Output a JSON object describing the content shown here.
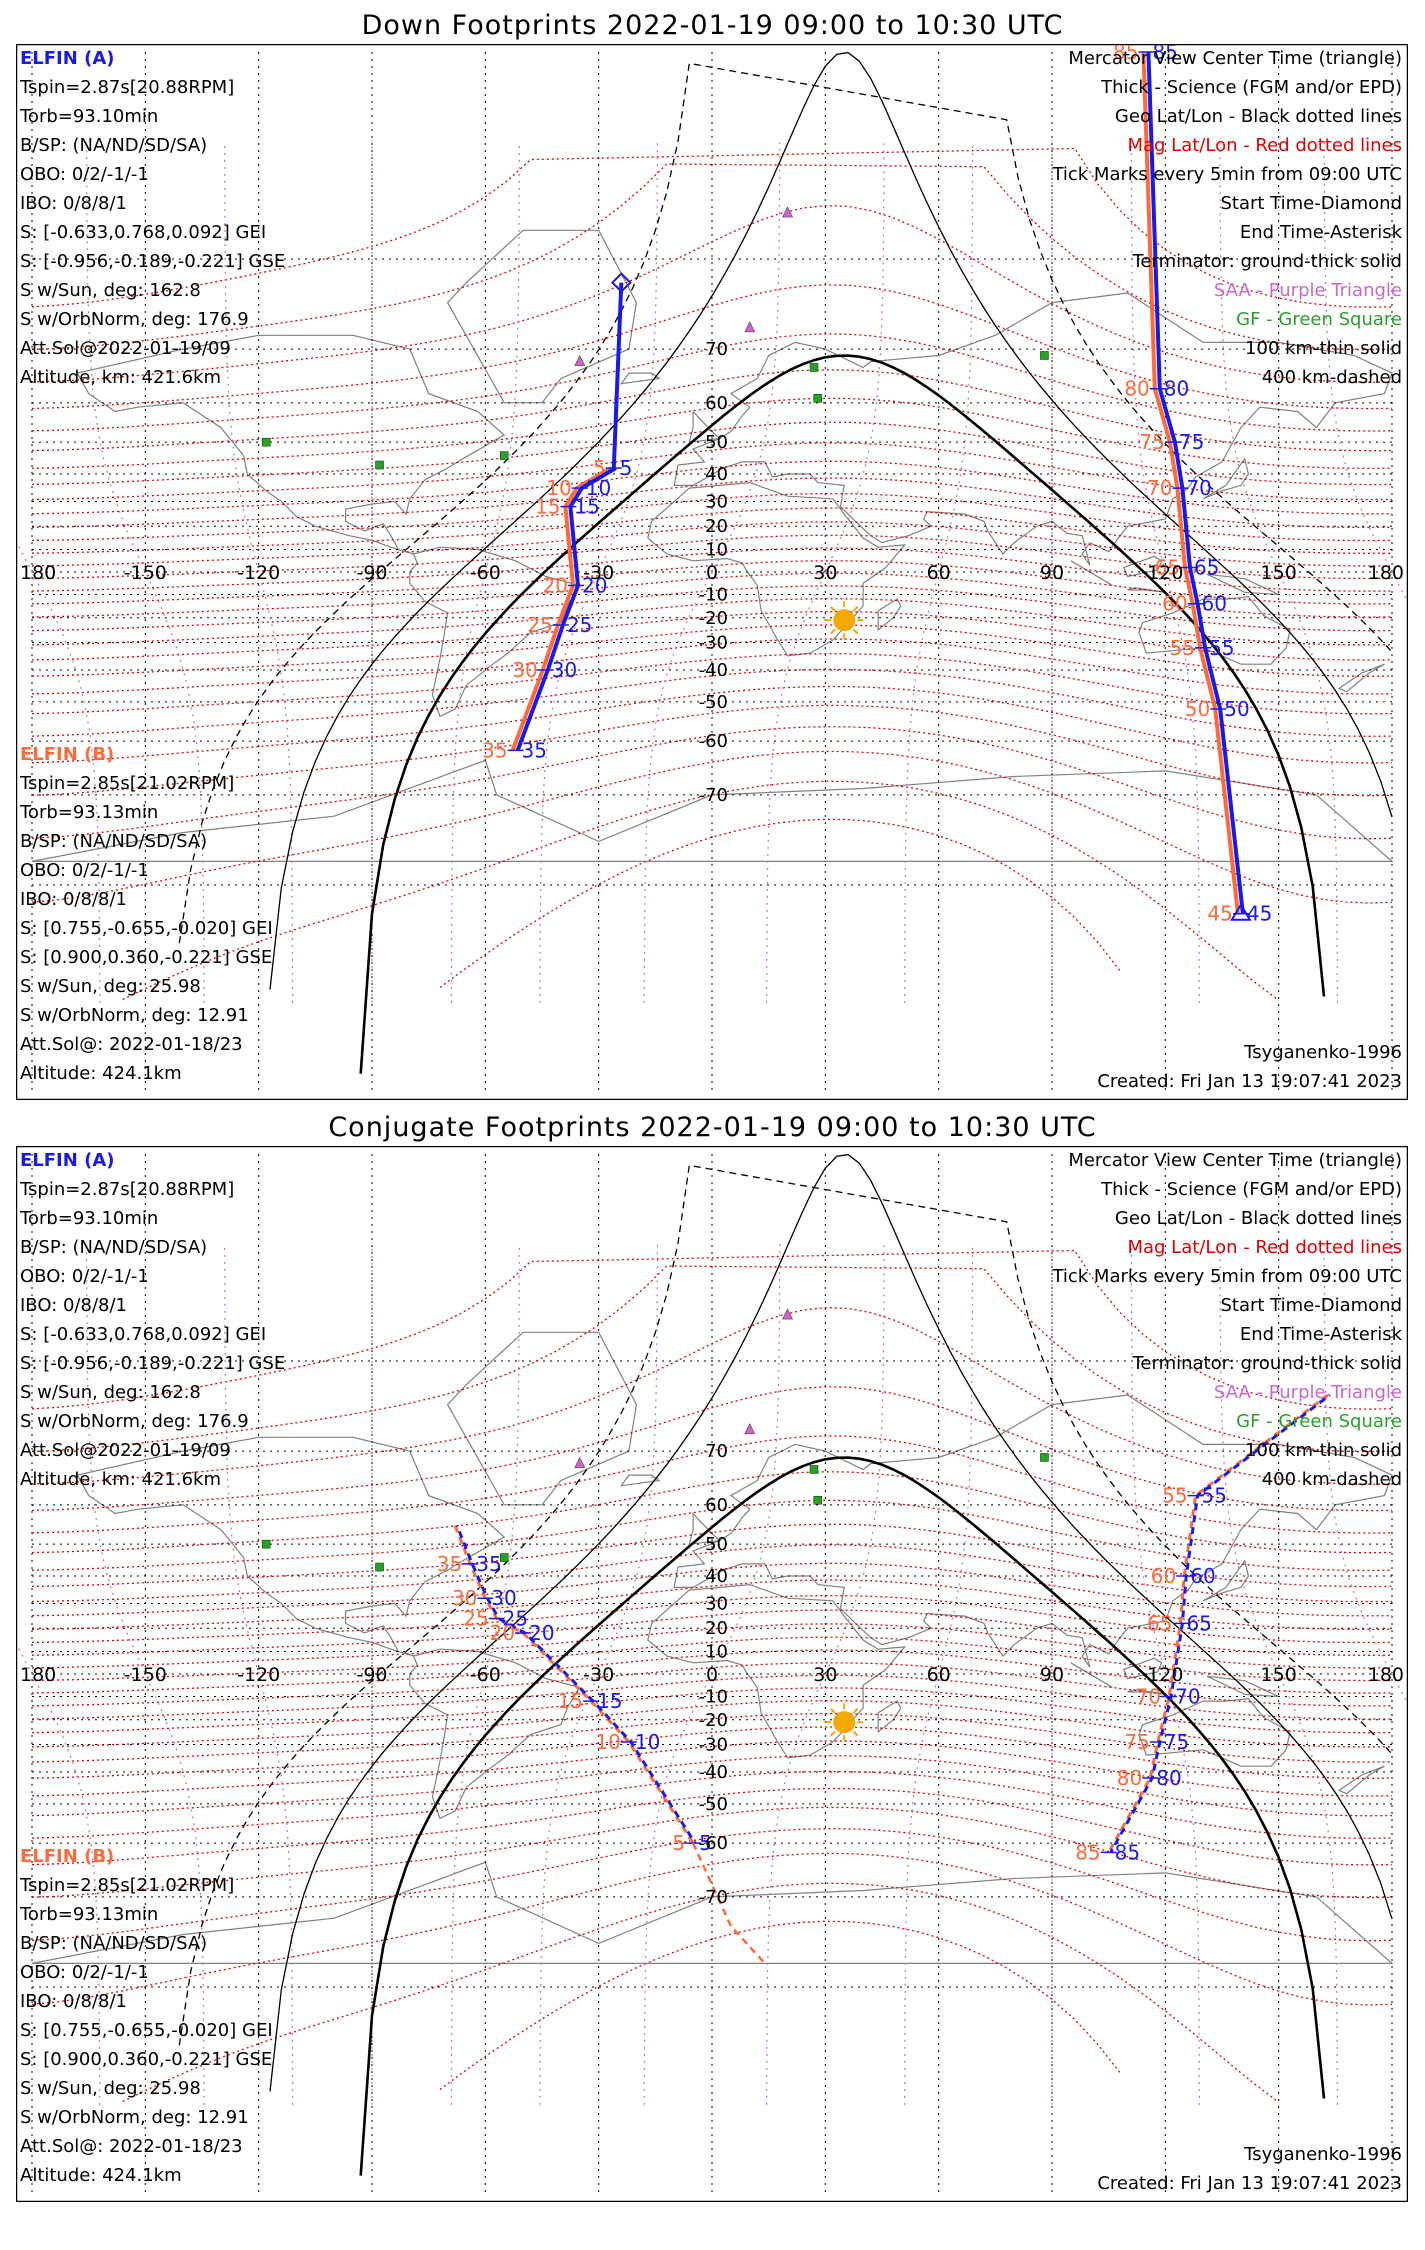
{
  "panels": [
    {
      "title": "Down Footprints 2022-01-19 09:00 to 10:30 UTC",
      "sat_a": {
        "name": "ELFIN (A)",
        "lines": [
          "Tspin=2.87s[20.88RPM]",
          "Torb=93.10min",
          "B/SP: (NA/ND/SD/SA)",
          "OBO: 0/2/-1/-1",
          "IBO: 0/8/8/1",
          "S: [-0.633,0.768,0.092] GEI",
          "S: [-0.956,-0.189,-0.221] GSE",
          "S w/Sun, deg: 162.8",
          "S w/OrbNorm, deg: 176.9",
          "Att.Sol@2022-01-19/09",
          "Altitude, km: 421.6km"
        ]
      },
      "sat_b": {
        "name": "ELFIN (B)",
        "lines": [
          "Tspin=2.85s[21.02RPM]",
          "Torb=93.13min",
          "B/SP: (NA/ND/SD/SA)",
          "OBO: 0/2/-1/-1",
          "IBO: 0/8/8/1",
          "S: [0.755,-0.655,-0.020] GEI",
          "S: [0.900,0.360,-0.221] GSE",
          "S w/Sun, deg: 25.98",
          "S w/OrbNorm, deg: 12.91",
          "Att.Sol@: 2022-01-18/23",
          "Altitude: 424.1km"
        ]
      },
      "legend": [
        "Mercator View Center Time (triangle)",
        "Thick - Science (FGM and/or EPD)",
        "Geo Lat/Lon - Black dotted lines",
        "Mag Lat/Lon - Red dotted lines",
        "Tick Marks every 5min from 09:00 UTC",
        "Start Time-Diamond",
        "End Time-Asterisk",
        "Terminator: ground-thick solid",
        "SAA - Purple Triangle",
        "GF - Green Square",
        "100 km-thin solid",
        "400 km-dashed"
      ],
      "model": "Tsyganenko-1996",
      "created": "Created: Fri Jan 13 19:07:41 2023",
      "track_a": {
        "ticks": [
          {
            "lon": -26,
            "lat": 42,
            "a": "5",
            "b": "5"
          },
          {
            "lon": -35,
            "lat": 35,
            "a": "10",
            "b": "10"
          },
          {
            "lon": -38,
            "lat": 28,
            "a": "15",
            "b": "15"
          },
          {
            "lon": -36,
            "lat": -6,
            "a": "20",
            "b": "20"
          },
          {
            "lon": -40,
            "lat": -23,
            "a": "25",
            "b": "25"
          },
          {
            "lon": -44,
            "lat": -40,
            "a": "30",
            "b": "30"
          },
          {
            "lon": -52,
            "lat": -62,
            "a": "35",
            "b": "35"
          }
        ]
      },
      "track_b": {
        "ticks": [
          {
            "lon": 115,
            "lat": 88,
            "a": "85",
            "b": "85"
          },
          {
            "lon": 118,
            "lat": 63,
            "a": "80",
            "b": "80"
          },
          {
            "lon": 122,
            "lat": 50,
            "a": "75",
            "b": "75"
          },
          {
            "lon": 124,
            "lat": 35,
            "a": "70",
            "b": "70"
          },
          {
            "lon": 126,
            "lat": 2,
            "a": "65",
            "b": "65"
          },
          {
            "lon": 128,
            "lat": -14,
            "a": "60",
            "b": "60"
          },
          {
            "lon": 130,
            "lat": -32,
            "a": "55",
            "b": "55"
          },
          {
            "lon": 134,
            "lat": -52,
            "a": "50",
            "b": "50"
          },
          {
            "lon": 140,
            "lat": -82,
            "a": "45",
            "b": "45"
          }
        ]
      }
    },
    {
      "title": "Conjugate Footprints 2022-01-19 09:00 to 10:30 UTC",
      "sat_a": {
        "name": "ELFIN (A)",
        "lines": [
          "Tspin=2.87s[20.88RPM]",
          "Torb=93.10min",
          "B/SP: (NA/ND/SD/SA)",
          "OBO: 0/2/-1/-1",
          "IBO: 0/8/8/1",
          "S: [-0.633,0.768,0.092] GEI",
          "S: [-0.956,-0.189,-0.221] GSE",
          "S w/Sun, deg: 162.8",
          "S w/OrbNorm, deg: 176.9",
          "Att.Sol@2022-01-19/09",
          "Altitude, km: 421.6km"
        ]
      },
      "sat_b": {
        "name": "ELFIN (B)",
        "lines": [
          "Tspin=2.85s[21.02RPM]",
          "Torb=93.13min",
          "B/SP: (NA/ND/SD/SA)",
          "OBO: 0/2/-1/-1",
          "IBO: 0/8/8/1",
          "S: [0.755,-0.655,-0.020] GEI",
          "S: [0.900,0.360,-0.221] GSE",
          "S w/Sun, deg: 25.98",
          "S w/OrbNorm, deg: 12.91",
          "Att.Sol@: 2022-01-18/23",
          "Altitude: 424.1km"
        ]
      },
      "legend": [
        "Mercator View Center Time (triangle)",
        "Thick - Science (FGM and/or EPD)",
        "Geo Lat/Lon - Black dotted lines",
        "Mag Lat/Lon - Red dotted lines",
        "Tick Marks every 5min from 09:00 UTC",
        "Start Time-Diamond",
        "End Time-Asterisk",
        "Terminator: ground-thick solid",
        "SAA - Purple Triangle",
        "GF - Green Square",
        "100 km-thin solid",
        "400 km-dashed"
      ],
      "model": "Tsyganenko-1996",
      "created": "Created: Fri Jan 13 19:07:41 2023",
      "track_a": {
        "ticks": [
          {
            "lon": -64,
            "lat": 44,
            "a": "35",
            "b": "35"
          },
          {
            "lon": -60,
            "lat": 32,
            "a": "30",
            "b": "30"
          },
          {
            "lon": -57,
            "lat": 24,
            "a": "25",
            "b": "25"
          },
          {
            "lon": -50,
            "lat": 18,
            "a": "20",
            "b": "20"
          },
          {
            "lon": -32,
            "lat": -12,
            "a": "15",
            "b": "15"
          },
          {
            "lon": -22,
            "lat": -29,
            "a": "10",
            "b": "10"
          },
          {
            "lon": -5,
            "lat": -60,
            "a": "5",
            "b": "5"
          }
        ]
      },
      "track_b": {
        "ticks": [
          {
            "lon": 128,
            "lat": 62,
            "a": "55",
            "b": "55"
          },
          {
            "lon": 125,
            "lat": 40,
            "a": "60",
            "b": "60"
          },
          {
            "lon": 124,
            "lat": 22,
            "a": "65",
            "b": "65"
          },
          {
            "lon": 121,
            "lat": -10,
            "a": "70",
            "b": "70"
          },
          {
            "lon": 118,
            "lat": -29,
            "a": "75",
            "b": "75"
          },
          {
            "lon": 116,
            "lat": -42,
            "a": "80",
            "b": "80"
          },
          {
            "lon": 105,
            "lat": -62,
            "a": "85",
            "b": "85"
          }
        ]
      }
    }
  ],
  "lon_ticks": [
    "180",
    "-150",
    "-120",
    "-90",
    "-60",
    "-30",
    "0",
    "30",
    "60",
    "90",
    "120",
    "150",
    "180"
  ],
  "lat_ticks": [
    "70",
    "60",
    "50",
    "40",
    "30",
    "20",
    "10",
    "0",
    "-10",
    "-20",
    "-30",
    "-40",
    "-50",
    "-60",
    "-70"
  ],
  "colors": {
    "sat_a": "#1a1ae6",
    "sat_b": "#ff6a3d",
    "mag": "#e00000",
    "geo": "#000000",
    "saa": "#cc66cc",
    "gf": "#2aa02a",
    "sun": "#f5a800",
    "legend_red": "#e00000",
    "legend_purple": "#cc66cc",
    "legend_green": "#2aa02a",
    "ticklabel_a": "#1a1ae6",
    "ticklabel_b": "#ff6a3d"
  }
}
